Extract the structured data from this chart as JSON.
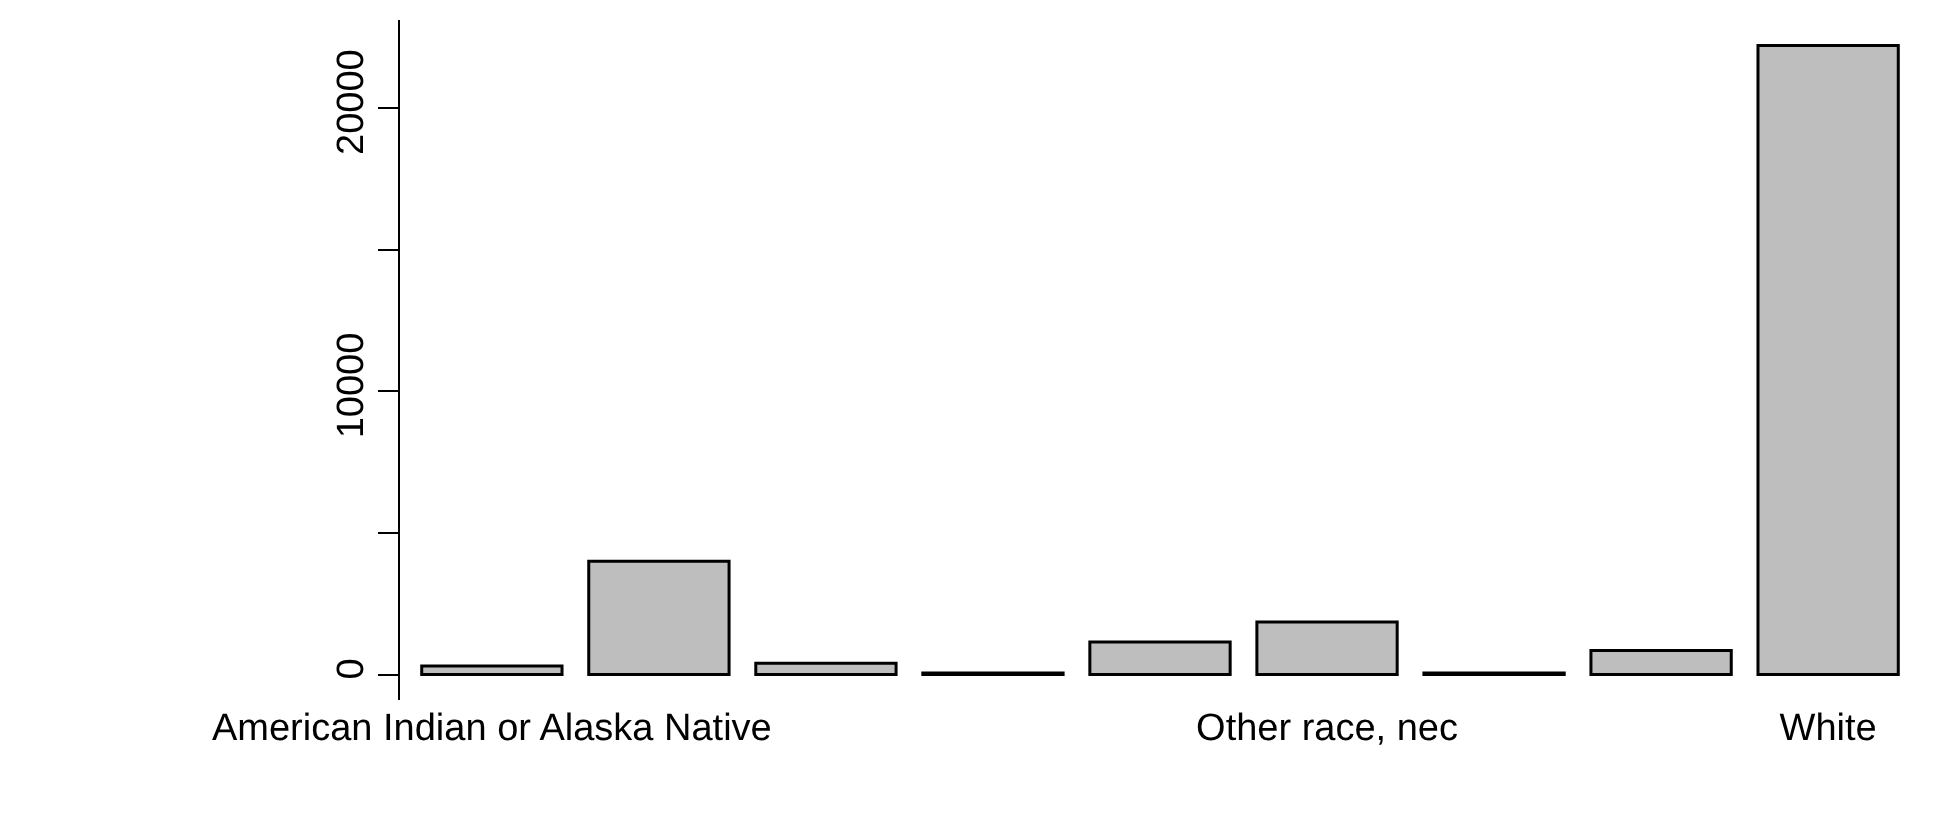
{
  "chart_data": {
    "type": "bar",
    "categories": [
      "American Indian or Alaska Native",
      null,
      null,
      null,
      null,
      "Other race, nec",
      null,
      null,
      "White"
    ],
    "values": [
      300,
      4000,
      400,
      50,
      1150,
      1850,
      50,
      850,
      22200
    ],
    "color": "#bebebe",
    "ylim": [
      -900,
      23100
    ],
    "yticks": [
      0,
      {
        "value": 5000,
        "label": null
      },
      10000,
      {
        "value": 15000,
        "label": null
      },
      20000
    ],
    "tick_labels": "xy"
  }
}
